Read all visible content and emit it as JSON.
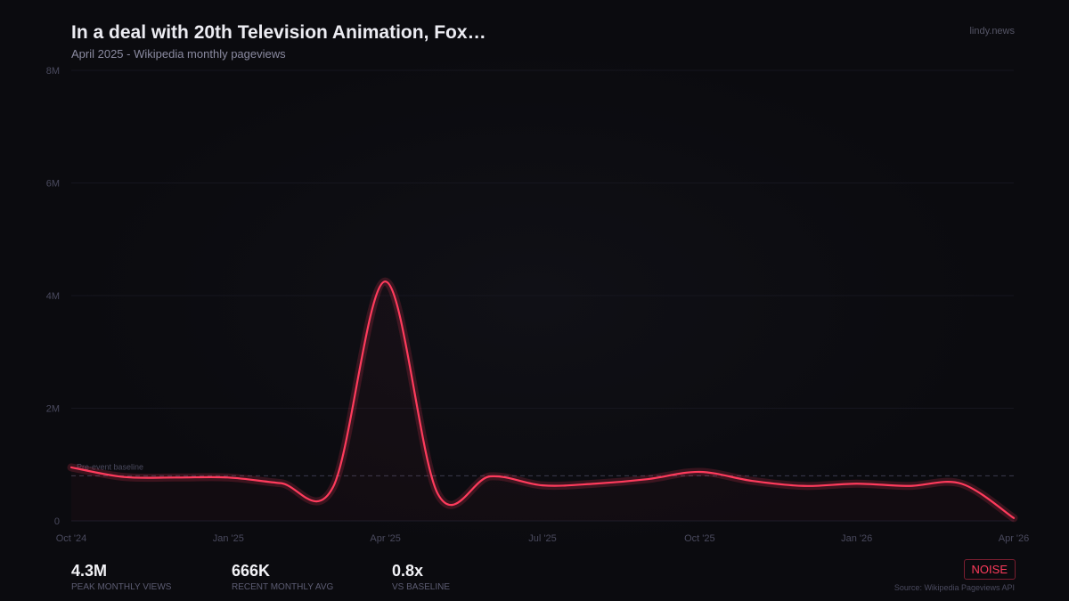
{
  "header": {
    "title": "In a deal with 20th Television Animation, Fox…",
    "subtitle": "April 2025  -  Wikipedia monthly pageviews",
    "brand": "lindy.news"
  },
  "chart_data": {
    "type": "line",
    "x": [
      "Oct '24",
      "Nov '24",
      "Dec '24",
      "Jan '25",
      "Feb '25",
      "Mar '25",
      "Apr '25",
      "May '25",
      "Jun '25",
      "Jul '25",
      "Aug '25",
      "Sep '25",
      "Oct '25",
      "Nov '25",
      "Dec '25",
      "Jan '26",
      "Feb '26",
      "Mar '26",
      "Apr '26"
    ],
    "series": [
      {
        "values": [
          950000,
          780000,
          770000,
          770000,
          670000,
          600000,
          4250000,
          480000,
          790000,
          630000,
          660000,
          740000,
          870000,
          710000,
          620000,
          660000,
          620000,
          660000,
          50000
        ]
      }
    ],
    "xticks": [
      "Oct '24",
      "Jan '25",
      "Apr '25",
      "Jul '25",
      "Oct '25",
      "Jan '26",
      "Apr '26"
    ],
    "yticks": [
      {
        "v": 0,
        "label": "0"
      },
      {
        "v": 2000000,
        "label": "2M"
      },
      {
        "v": 4000000,
        "label": "4M"
      },
      {
        "v": 6000000,
        "label": "6M"
      },
      {
        "v": 8000000,
        "label": "8M"
      }
    ],
    "ylim": [
      0,
      8000000
    ],
    "baseline": {
      "value": 800000,
      "label": "Pre-event baseline"
    },
    "grid": true,
    "line_color": "#ff3b5c"
  },
  "stats": [
    {
      "value": "4.3M",
      "label": "PEAK MONTHLY VIEWS"
    },
    {
      "value": "666K",
      "label": "RECENT MONTHLY AVG"
    },
    {
      "value": "0.8x",
      "label": "VS BASELINE"
    }
  ],
  "badge": "NOISE",
  "source": "Source: Wikipedia Pageviews API"
}
